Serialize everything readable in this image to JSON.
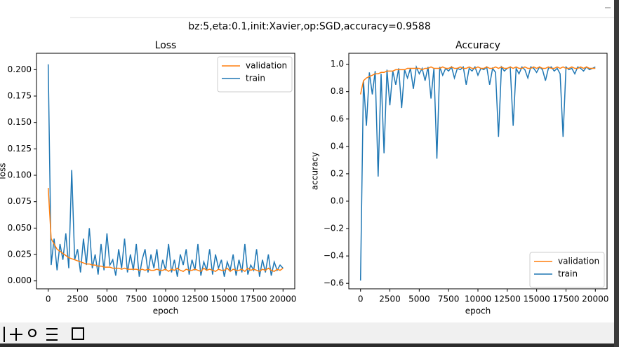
{
  "suptitle": "bz:5,eta:0.1,init:Xavier,op:SGD,accuracy=0.9588",
  "chart_data": [
    {
      "type": "line",
      "title": "Loss",
      "xlabel": "epoch",
      "ylabel": "loss",
      "legend": "upper right",
      "x": [
        0,
        250,
        500,
        750,
        1000,
        1250,
        1500,
        1750,
        2000,
        2250,
        2500,
        2750,
        3000,
        3250,
        3500,
        3750,
        4000,
        4250,
        4500,
        4750,
        5000,
        5250,
        5500,
        5750,
        6000,
        6250,
        6500,
        6750,
        7000,
        7250,
        7500,
        7750,
        8000,
        8250,
        8500,
        8750,
        9000,
        9250,
        9500,
        9750,
        10000,
        10250,
        10500,
        10750,
        11000,
        11250,
        11500,
        11750,
        12000,
        12250,
        12500,
        12750,
        13000,
        13250,
        13500,
        13750,
        14000,
        14250,
        14500,
        14750,
        15000,
        15250,
        15500,
        15750,
        16000,
        16250,
        16500,
        16750,
        17000,
        17250,
        17500,
        17750,
        18000,
        18250,
        18500,
        18750,
        19000,
        19250,
        19500,
        19750,
        20000
      ],
      "series": [
        {
          "name": "validation",
          "color": "#ff7f0e",
          "values": [
            0.088,
            0.04,
            0.035,
            0.03,
            0.028,
            0.026,
            0.024,
            0.022,
            0.021,
            0.02,
            0.019,
            0.018,
            0.017,
            0.016,
            0.016,
            0.015,
            0.015,
            0.014,
            0.014,
            0.013,
            0.013,
            0.013,
            0.012,
            0.012,
            0.012,
            0.011,
            0.012,
            0.011,
            0.011,
            0.011,
            0.011,
            0.01,
            0.011,
            0.01,
            0.011,
            0.01,
            0.01,
            0.011,
            0.01,
            0.01,
            0.011,
            0.009,
            0.011,
            0.01,
            0.012,
            0.01,
            0.009,
            0.011,
            0.01,
            0.01,
            0.011,
            0.01,
            0.009,
            0.012,
            0.01,
            0.011,
            0.01,
            0.009,
            0.011,
            0.01,
            0.01,
            0.012,
            0.009,
            0.011,
            0.01,
            0.01,
            0.011,
            0.009,
            0.012,
            0.01,
            0.011,
            0.01,
            0.009,
            0.011,
            0.01,
            0.012,
            0.01,
            0.009,
            0.011,
            0.01,
            0.012
          ]
        },
        {
          "name": "train",
          "color": "#1f77b4",
          "values": [
            0.205,
            0.015,
            0.04,
            0.01,
            0.035,
            0.02,
            0.045,
            0.012,
            0.105,
            0.02,
            0.03,
            0.008,
            0.04,
            0.015,
            0.05,
            0.012,
            0.025,
            0.006,
            0.035,
            0.01,
            0.045,
            0.015,
            0.02,
            0.005,
            0.03,
            0.012,
            0.04,
            0.008,
            0.025,
            0.01,
            0.035,
            0.004,
            0.02,
            0.03,
            0.008,
            0.025,
            0.012,
            0.03,
            0.005,
            0.02,
            0.01,
            0.035,
            0.008,
            0.02,
            0.004,
            0.025,
            0.015,
            0.03,
            0.006,
            0.02,
            0.01,
            0.035,
            0.005,
            0.018,
            0.01,
            0.03,
            0.006,
            0.025,
            0.012,
            0.02,
            0.004,
            0.018,
            0.01,
            0.025,
            0.005,
            0.02,
            0.008,
            0.035,
            0.006,
            0.015,
            0.01,
            0.03,
            0.004,
            0.02,
            0.008,
            0.025,
            0.005,
            0.018,
            0.01,
            0.015,
            0.012
          ]
        }
      ],
      "xlim": [
        -1000,
        21000
      ],
      "xticks": [
        0,
        2500,
        5000,
        7500,
        10000,
        12500,
        15000,
        17500,
        20000
      ],
      "ylim": [
        -0.0075,
        0.2155
      ],
      "yticks": [
        {
          "value": 0,
          "label": "0.000"
        },
        {
          "value": 0.025,
          "label": "0.025"
        },
        {
          "value": 0.05,
          "label": "0.050"
        },
        {
          "value": 0.075,
          "label": "0.075"
        },
        {
          "value": 0.1,
          "label": "0.100"
        },
        {
          "value": 0.125,
          "label": "0.125"
        },
        {
          "value": 0.15,
          "label": "0.150"
        },
        {
          "value": 0.175,
          "label": "0.175"
        },
        {
          "value": 0.2,
          "label": "0.200"
        }
      ]
    },
    {
      "type": "line",
      "title": "Accuracy",
      "xlabel": "epoch",
      "ylabel": "accuracy",
      "legend": "lower right",
      "x": [
        0,
        250,
        500,
        750,
        1000,
        1250,
        1500,
        1750,
        2000,
        2250,
        2500,
        2750,
        3000,
        3250,
        3500,
        3750,
        4000,
        4250,
        4500,
        4750,
        5000,
        5250,
        5500,
        5750,
        6000,
        6250,
        6500,
        6750,
        7000,
        7250,
        7500,
        7750,
        8000,
        8250,
        8500,
        8750,
        9000,
        9250,
        9500,
        9750,
        10000,
        10250,
        10500,
        10750,
        11000,
        11250,
        11500,
        11750,
        12000,
        12250,
        12500,
        12750,
        13000,
        13250,
        13500,
        13750,
        14000,
        14250,
        14500,
        14750,
        15000,
        15250,
        15500,
        15750,
        16000,
        16250,
        16500,
        16750,
        17000,
        17250,
        17500,
        17750,
        18000,
        18250,
        18500,
        18750,
        19000,
        19250,
        19500,
        19750,
        20000
      ],
      "series": [
        {
          "name": "validation",
          "color": "#ff7f0e",
          "values": [
            0.78,
            0.88,
            0.9,
            0.91,
            0.92,
            0.93,
            0.93,
            0.94,
            0.94,
            0.95,
            0.95,
            0.95,
            0.96,
            0.96,
            0.96,
            0.96,
            0.97,
            0.97,
            0.97,
            0.97,
            0.97,
            0.96,
            0.97,
            0.97,
            0.98,
            0.97,
            0.97,
            0.97,
            0.98,
            0.97,
            0.97,
            0.98,
            0.97,
            0.97,
            0.98,
            0.97,
            0.97,
            0.98,
            0.97,
            0.97,
            0.98,
            0.97,
            0.97,
            0.98,
            0.97,
            0.97,
            0.98,
            0.97,
            0.98,
            0.97,
            0.97,
            0.98,
            0.97,
            0.98,
            0.97,
            0.97,
            0.98,
            0.97,
            0.97,
            0.98,
            0.97,
            0.98,
            0.97,
            0.97,
            0.98,
            0.97,
            0.97,
            0.98,
            0.97,
            0.98,
            0.97,
            0.97,
            0.98,
            0.97,
            0.97,
            0.98,
            0.97,
            0.98,
            0.97,
            0.97,
            0.97
          ]
        },
        {
          "name": "train",
          "color": "#1f77b4",
          "values": [
            -0.58,
            0.88,
            0.55,
            0.94,
            0.78,
            0.95,
            0.18,
            0.93,
            0.35,
            0.96,
            0.7,
            0.95,
            0.85,
            0.97,
            0.68,
            0.96,
            0.9,
            0.97,
            0.82,
            0.98,
            0.93,
            0.97,
            0.88,
            0.98,
            0.75,
            0.97,
            0.31,
            0.98,
            0.92,
            0.97,
            0.95,
            0.98,
            0.9,
            0.97,
            0.96,
            0.98,
            0.85,
            0.97,
            0.95,
            0.98,
            0.92,
            0.97,
            0.96,
            0.98,
            0.85,
            0.97,
            0.94,
            0.47,
            0.98,
            0.95,
            0.97,
            0.98,
            0.55,
            0.97,
            0.93,
            0.98,
            0.96,
            0.9,
            0.98,
            0.97,
            0.94,
            0.98,
            0.96,
            0.88,
            0.97,
            0.98,
            0.95,
            0.97,
            0.93,
            0.47,
            0.98,
            0.96,
            0.97,
            0.93,
            0.98,
            0.97,
            0.95,
            0.98,
            0.96,
            0.97,
            0.98
          ]
        }
      ],
      "xlim": [
        -1000,
        21000
      ],
      "xticks": [
        0,
        2500,
        5000,
        7500,
        10000,
        12500,
        15000,
        17500,
        20000
      ],
      "ylim": [
        -0.64,
        1.08
      ],
      "yticks": [
        {
          "value": -0.6,
          "label": "−0.6"
        },
        {
          "value": -0.4,
          "label": "−0.4"
        },
        {
          "value": -0.2,
          "label": "−0.2"
        },
        {
          "value": 0,
          "label": "0.0"
        },
        0.2,
        0.4,
        0.6,
        0.8,
        {
          "value": 1,
          "label": "1.0"
        }
      ]
    }
  ]
}
